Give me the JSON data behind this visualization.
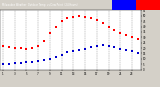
{
  "background_color": "#d4d0c8",
  "plot_bg": "#ffffff",
  "temp_x": [
    0,
    1,
    2,
    3,
    4,
    5,
    6,
    7,
    8,
    9,
    10,
    11,
    12,
    13,
    14,
    15,
    16,
    17,
    18,
    19,
    20,
    21,
    22,
    23
  ],
  "temp_y": [
    22,
    21,
    20,
    20,
    19,
    20,
    22,
    27,
    34,
    40,
    45,
    48,
    49,
    50,
    49,
    48,
    46,
    43,
    40,
    37,
    34,
    32,
    30,
    28
  ],
  "dew_x": [
    0,
    1,
    2,
    3,
    4,
    5,
    6,
    7,
    8,
    9,
    10,
    11,
    12,
    13,
    14,
    15,
    16,
    17,
    18,
    19,
    20,
    21,
    22,
    23
  ],
  "dew_y": [
    5,
    5,
    6,
    6,
    7,
    7,
    8,
    9,
    10,
    12,
    14,
    16,
    17,
    18,
    19,
    21,
    22,
    23,
    22,
    21,
    19,
    18,
    17,
    15
  ],
  "ylim": [
    0,
    55
  ],
  "xlim": [
    -0.5,
    23.5
  ],
  "ytick_positions": [
    0,
    5,
    10,
    15,
    20,
    25,
    30,
    35,
    40,
    45,
    50,
    55
  ],
  "ytick_labels": [
    "0",
    "5",
    "10",
    "15",
    "20",
    "25",
    "30",
    "35",
    "40",
    "45",
    "50",
    "55"
  ],
  "xtick_positions": [
    0,
    2,
    4,
    6,
    8,
    10,
    12,
    14,
    16,
    18,
    20,
    22
  ],
  "xtick_labels": [
    "1",
    "3",
    "5",
    "7",
    "9",
    "11",
    "13",
    "15",
    "17",
    "19",
    "21",
    "23"
  ],
  "grid_positions": [
    0,
    2,
    4,
    6,
    8,
    10,
    12,
    14,
    16,
    18,
    20,
    22
  ],
  "grid_color": "#888888",
  "dot_size": 2.5,
  "temp_color": "#ff0000",
  "dew_color": "#0000cc",
  "legend_blue": "#0000ff",
  "legend_red": "#ff0000",
  "title_bg": "#404040",
  "title_text": "Milwaukee Weather  Outdoor Temp",
  "title_color": "#ffffff"
}
